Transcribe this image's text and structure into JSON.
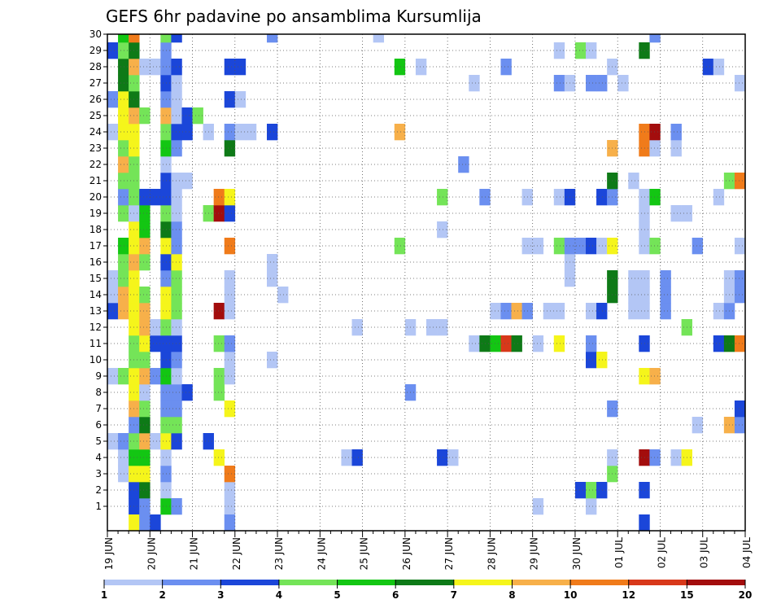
{
  "chart_data": {
    "type": "heatmap",
    "title": "GEFS 6hr padavine po ansamblima Kursumlija",
    "xlabel": "",
    "ylabel": "",
    "x_ticks": [
      "19 JUN",
      "20 JUN",
      "21 JUN",
      "22 JUN",
      "23 JUN",
      "24 JUN",
      "25 JUN",
      "26 JUN",
      "27 JUN",
      "28 JUN",
      "29 JUN",
      "30 JUN",
      "01 JUL",
      "02 JUL",
      "03 JUL",
      "04 JUL"
    ],
    "y_ticks": [
      "1",
      "2",
      "3",
      "4",
      "5",
      "6",
      "7",
      "8",
      "9",
      "10",
      "11",
      "12",
      "13",
      "14",
      "15",
      "16",
      "17",
      "18",
      "19",
      "20",
      "21",
      "22",
      "23",
      "24",
      "25",
      "26",
      "27",
      "28",
      "29",
      "30"
    ],
    "steps_per_day": 4,
    "n_steps": 60,
    "members": 30,
    "grid": "dotted",
    "colorbar": {
      "levels": [
        "1",
        "2",
        "3",
        "4",
        "5",
        "6",
        "7",
        "8",
        "10",
        "12",
        "15",
        "20"
      ],
      "colors": [
        "#b3c6f5",
        "#6b8ff0",
        "#1b46d9",
        "#74e458",
        "#13c613",
        "#0e7a17",
        "#f5f51b",
        "#f7b04a",
        "#f07b1a",
        "#d8381a",
        "#a30d0d"
      ]
    },
    "cells": [
      [
        1,
        2,
        "#1b46d9"
      ],
      [
        1,
        3,
        "#6b8ff0"
      ],
      [
        1,
        5,
        "#13c613"
      ],
      [
        1,
        6,
        "#6b8ff0"
      ],
      [
        1,
        11,
        "#b3c6f5"
      ],
      [
        1,
        40,
        "#b3c6f5"
      ],
      [
        1,
        45,
        "#b3c6f5"
      ],
      [
        2,
        2,
        "#1b46d9"
      ],
      [
        2,
        3,
        "#0e7a17"
      ],
      [
        2,
        5,
        "#b3c6f5"
      ],
      [
        2,
        11,
        "#b3c6f5"
      ],
      [
        2,
        44,
        "#1b46d9"
      ],
      [
        2,
        45,
        "#74e458"
      ],
      [
        2,
        46,
        "#1b46d9"
      ],
      [
        2,
        50,
        "#1b46d9"
      ],
      [
        3,
        1,
        "#b3c6f5"
      ],
      [
        3,
        2,
        "#f5f51b"
      ],
      [
        3,
        3,
        "#f5f51b"
      ],
      [
        3,
        5,
        "#6b8ff0"
      ],
      [
        3,
        11,
        "#f07b1a"
      ],
      [
        3,
        47,
        "#74e458"
      ],
      [
        4,
        1,
        "#b3c6f5"
      ],
      [
        4,
        2,
        "#13c613"
      ],
      [
        4,
        3,
        "#13c613"
      ],
      [
        4,
        5,
        "#b3c6f5"
      ],
      [
        4,
        10,
        "#f5f51b"
      ],
      [
        4,
        22,
        "#b3c6f5"
      ],
      [
        4,
        23,
        "#1b46d9"
      ],
      [
        4,
        31,
        "#1b46d9"
      ],
      [
        4,
        32,
        "#b3c6f5"
      ],
      [
        4,
        47,
        "#b3c6f5"
      ],
      [
        4,
        50,
        "#a30d0d"
      ],
      [
        4,
        51,
        "#6b8ff0"
      ],
      [
        4,
        53,
        "#b3c6f5"
      ],
      [
        4,
        54,
        "#f5f51b"
      ],
      [
        5,
        0,
        "#b3c6f5"
      ],
      [
        5,
        1,
        "#6b8ff0"
      ],
      [
        5,
        2,
        "#74e458"
      ],
      [
        5,
        3,
        "#f7b04a"
      ],
      [
        5,
        4,
        "#b3c6f5"
      ],
      [
        5,
        5,
        "#f5f51b"
      ],
      [
        5,
        6,
        "#1b46d9"
      ],
      [
        5,
        9,
        "#1b46d9"
      ],
      [
        6,
        2,
        "#6b8ff0"
      ],
      [
        6,
        3,
        "#0e7a17"
      ],
      [
        6,
        5,
        "#74e458"
      ],
      [
        6,
        6,
        "#74e458"
      ],
      [
        6,
        55,
        "#b3c6f5"
      ],
      [
        6,
        58,
        "#f7b04a"
      ],
      [
        6,
        59,
        "#6b8ff0"
      ],
      [
        7,
        2,
        "#f7b04a"
      ],
      [
        7,
        3,
        "#74e458"
      ],
      [
        7,
        5,
        "#6b8ff0"
      ],
      [
        7,
        6,
        "#6b8ff0"
      ],
      [
        7,
        11,
        "#f5f51b"
      ],
      [
        7,
        47,
        "#6b8ff0"
      ],
      [
        7,
        59,
        "#1b46d9"
      ],
      [
        8,
        2,
        "#f5f51b"
      ],
      [
        8,
        3,
        "#b3c6f5"
      ],
      [
        8,
        5,
        "#6b8ff0"
      ],
      [
        8,
        6,
        "#6b8ff0"
      ],
      [
        8,
        7,
        "#1b46d9"
      ],
      [
        8,
        10,
        "#74e458"
      ],
      [
        8,
        28,
        "#6b8ff0"
      ],
      [
        9,
        0,
        "#b3c6f5"
      ],
      [
        9,
        1,
        "#74e458"
      ],
      [
        9,
        2,
        "#f5f51b"
      ],
      [
        9,
        3,
        "#f7b04a"
      ],
      [
        9,
        4,
        "#6b8ff0"
      ],
      [
        9,
        5,
        "#13c613"
      ],
      [
        9,
        6,
        "#b3c6f5"
      ],
      [
        9,
        10,
        "#74e458"
      ],
      [
        9,
        11,
        "#b3c6f5"
      ],
      [
        9,
        50,
        "#f5f51b"
      ],
      [
        9,
        51,
        "#f7b04a"
      ],
      [
        10,
        2,
        "#74e458"
      ],
      [
        10,
        3,
        "#74e458"
      ],
      [
        10,
        5,
        "#1b46d9"
      ],
      [
        10,
        6,
        "#6b8ff0"
      ],
      [
        10,
        11,
        "#b3c6f5"
      ],
      [
        10,
        15,
        "#b3c6f5"
      ],
      [
        10,
        45,
        "#1b46d9"
      ],
      [
        10,
        46,
        "#f5f51b"
      ],
      [
        11,
        2,
        "#74e458"
      ],
      [
        11,
        3,
        "#f5f51b"
      ],
      [
        11,
        4,
        "#1b46d9"
      ],
      [
        11,
        5,
        "#1b46d9"
      ],
      [
        11,
        6,
        "#1b46d9"
      ],
      [
        11,
        10,
        "#74e458"
      ],
      [
        11,
        11,
        "#6b8ff0"
      ],
      [
        11,
        34,
        "#b3c6f5"
      ],
      [
        11,
        35,
        "#0e7a17"
      ],
      [
        11,
        36,
        "#13c613"
      ],
      [
        11,
        37,
        "#d8381a"
      ],
      [
        11,
        38,
        "#0e7a17"
      ],
      [
        11,
        40,
        "#b3c6f5"
      ],
      [
        11,
        42,
        "#f5f51b"
      ],
      [
        11,
        45,
        "#6b8ff0"
      ],
      [
        11,
        50,
        "#1b46d9"
      ],
      [
        11,
        57,
        "#1b46d9"
      ],
      [
        11,
        58,
        "#0e7a17"
      ],
      [
        11,
        59,
        "#f07b1a"
      ],
      [
        12,
        2,
        "#f5f51b"
      ],
      [
        12,
        3,
        "#f7b04a"
      ],
      [
        12,
        4,
        "#b3c6f5"
      ],
      [
        12,
        5,
        "#74e458"
      ],
      [
        12,
        6,
        "#b3c6f5"
      ],
      [
        12,
        23,
        "#b3c6f5"
      ],
      [
        12,
        28,
        "#b3c6f5"
      ],
      [
        12,
        30,
        "#b3c6f5"
      ],
      [
        12,
        31,
        "#b3c6f5"
      ],
      [
        12,
        54,
        "#74e458"
      ],
      [
        13,
        0,
        "#1b46d9"
      ],
      [
        13,
        1,
        "#f7b04a"
      ],
      [
        13,
        2,
        "#f5f51b"
      ],
      [
        13,
        3,
        "#f7b04a"
      ],
      [
        13,
        5,
        "#f5f51b"
      ],
      [
        13,
        6,
        "#74e458"
      ],
      [
        13,
        10,
        "#a30d0d"
      ],
      [
        13,
        11,
        "#b3c6f5"
      ],
      [
        13,
        36,
        "#b3c6f5"
      ],
      [
        13,
        37,
        "#6b8ff0"
      ],
      [
        13,
        38,
        "#f7b04a"
      ],
      [
        13,
        39,
        "#6b8ff0"
      ],
      [
        13,
        41,
        "#b3c6f5"
      ],
      [
        13,
        42,
        "#b3c6f5"
      ],
      [
        13,
        45,
        "#b3c6f5"
      ],
      [
        13,
        46,
        "#1b46d9"
      ],
      [
        13,
        49,
        "#b3c6f5"
      ],
      [
        13,
        50,
        "#b3c6f5"
      ],
      [
        13,
        52,
        "#6b8ff0"
      ],
      [
        13,
        57,
        "#b3c6f5"
      ],
      [
        13,
        58,
        "#6b8ff0"
      ],
      [
        14,
        0,
        "#b3c6f5"
      ],
      [
        14,
        1,
        "#f7b04a"
      ],
      [
        14,
        2,
        "#f5f51b"
      ],
      [
        14,
        3,
        "#74e458"
      ],
      [
        14,
        5,
        "#f5f51b"
      ],
      [
        14,
        6,
        "#74e458"
      ],
      [
        14,
        11,
        "#b3c6f5"
      ],
      [
        14,
        16,
        "#b3c6f5"
      ],
      [
        14,
        47,
        "#0e7a17"
      ],
      [
        14,
        49,
        "#b3c6f5"
      ],
      [
        14,
        50,
        "#b3c6f5"
      ],
      [
        14,
        52,
        "#6b8ff0"
      ],
      [
        14,
        58,
        "#b3c6f5"
      ],
      [
        14,
        59,
        "#6b8ff0"
      ],
      [
        15,
        0,
        "#b3c6f5"
      ],
      [
        15,
        1,
        "#74e458"
      ],
      [
        15,
        2,
        "#f5f51b"
      ],
      [
        15,
        5,
        "#6b8ff0"
      ],
      [
        15,
        6,
        "#74e458"
      ],
      [
        15,
        11,
        "#b3c6f5"
      ],
      [
        15,
        15,
        "#b3c6f5"
      ],
      [
        15,
        43,
        "#b3c6f5"
      ],
      [
        15,
        47,
        "#0e7a17"
      ],
      [
        15,
        49,
        "#b3c6f5"
      ],
      [
        15,
        50,
        "#b3c6f5"
      ],
      [
        15,
        52,
        "#6b8ff0"
      ],
      [
        15,
        58,
        "#b3c6f5"
      ],
      [
        15,
        59,
        "#6b8ff0"
      ],
      [
        16,
        1,
        "#74e458"
      ],
      [
        16,
        2,
        "#f7b04a"
      ],
      [
        16,
        3,
        "#74e458"
      ],
      [
        16,
        5,
        "#1b46d9"
      ],
      [
        16,
        6,
        "#f5f51b"
      ],
      [
        16,
        15,
        "#b3c6f5"
      ],
      [
        16,
        43,
        "#b3c6f5"
      ],
      [
        17,
        1,
        "#13c613"
      ],
      [
        17,
        2,
        "#f5f51b"
      ],
      [
        17,
        3,
        "#f7b04a"
      ],
      [
        17,
        5,
        "#f5f51b"
      ],
      [
        17,
        6,
        "#6b8ff0"
      ],
      [
        17,
        11,
        "#f07b1a"
      ],
      [
        17,
        27,
        "#74e458"
      ],
      [
        17,
        39,
        "#b3c6f5"
      ],
      [
        17,
        40,
        "#b3c6f5"
      ],
      [
        17,
        42,
        "#74e458"
      ],
      [
        17,
        43,
        "#6b8ff0"
      ],
      [
        17,
        44,
        "#6b8ff0"
      ],
      [
        17,
        45,
        "#1b46d9"
      ],
      [
        17,
        46,
        "#b3c6f5"
      ],
      [
        17,
        47,
        "#f5f51b"
      ],
      [
        17,
        50,
        "#b3c6f5"
      ],
      [
        17,
        51,
        "#74e458"
      ],
      [
        17,
        55,
        "#6b8ff0"
      ],
      [
        17,
        59,
        "#b3c6f5"
      ],
      [
        18,
        2,
        "#f5f51b"
      ],
      [
        18,
        3,
        "#13c613"
      ],
      [
        18,
        5,
        "#0e7a17"
      ],
      [
        18,
        6,
        "#6b8ff0"
      ],
      [
        18,
        31,
        "#b3c6f5"
      ],
      [
        18,
        50,
        "#b3c6f5"
      ],
      [
        19,
        1,
        "#74e458"
      ],
      [
        19,
        2,
        "#b3c6f5"
      ],
      [
        19,
        3,
        "#13c613"
      ],
      [
        19,
        5,
        "#74e458"
      ],
      [
        19,
        6,
        "#b3c6f5"
      ],
      [
        19,
        9,
        "#74e458"
      ],
      [
        19,
        10,
        "#a30d0d"
      ],
      [
        19,
        11,
        "#1b46d9"
      ],
      [
        19,
        50,
        "#b3c6f5"
      ],
      [
        19,
        53,
        "#b3c6f5"
      ],
      [
        19,
        54,
        "#b3c6f5"
      ],
      [
        20,
        1,
        "#6b8ff0"
      ],
      [
        20,
        2,
        "#74e458"
      ],
      [
        20,
        3,
        "#1b46d9"
      ],
      [
        20,
        4,
        "#1b46d9"
      ],
      [
        20,
        5,
        "#1b46d9"
      ],
      [
        20,
        6,
        "#b3c6f5"
      ],
      [
        20,
        10,
        "#f07b1a"
      ],
      [
        20,
        11,
        "#f5f51b"
      ],
      [
        20,
        31,
        "#74e458"
      ],
      [
        20,
        35,
        "#6b8ff0"
      ],
      [
        20,
        39,
        "#b3c6f5"
      ],
      [
        20,
        42,
        "#b3c6f5"
      ],
      [
        20,
        43,
        "#1b46d9"
      ],
      [
        20,
        46,
        "#1b46d9"
      ],
      [
        20,
        47,
        "#6b8ff0"
      ],
      [
        20,
        50,
        "#b3c6f5"
      ],
      [
        20,
        51,
        "#13c613"
      ],
      [
        20,
        57,
        "#b3c6f5"
      ],
      [
        21,
        1,
        "#74e458"
      ],
      [
        21,
        2,
        "#74e458"
      ],
      [
        21,
        5,
        "#1b46d9"
      ],
      [
        21,
        6,
        "#b3c6f5"
      ],
      [
        21,
        7,
        "#b3c6f5"
      ],
      [
        21,
        47,
        "#0e7a17"
      ],
      [
        21,
        49,
        "#b3c6f5"
      ],
      [
        21,
        58,
        "#74e458"
      ],
      [
        21,
        59,
        "#f07b1a"
      ],
      [
        22,
        1,
        "#f7b04a"
      ],
      [
        22,
        2,
        "#74e458"
      ],
      [
        22,
        5,
        "#b3c6f5"
      ],
      [
        22,
        33,
        "#6b8ff0"
      ],
      [
        23,
        1,
        "#74e458"
      ],
      [
        23,
        2,
        "#f5f51b"
      ],
      [
        23,
        5,
        "#13c613"
      ],
      [
        23,
        6,
        "#6b8ff0"
      ],
      [
        23,
        11,
        "#0e7a17"
      ],
      [
        23,
        47,
        "#f7b04a"
      ],
      [
        23,
        50,
        "#f07b1a"
      ],
      [
        23,
        51,
        "#b3c6f5"
      ],
      [
        23,
        53,
        "#b3c6f5"
      ],
      [
        24,
        0,
        "#b3c6f5"
      ],
      [
        24,
        1,
        "#f5f51b"
      ],
      [
        24,
        2,
        "#f5f51b"
      ],
      [
        24,
        5,
        "#74e458"
      ],
      [
        24,
        6,
        "#1b46d9"
      ],
      [
        24,
        7,
        "#1b46d9"
      ],
      [
        24,
        9,
        "#b3c6f5"
      ],
      [
        24,
        11,
        "#6b8ff0"
      ],
      [
        24,
        12,
        "#b3c6f5"
      ],
      [
        24,
        13,
        "#b3c6f5"
      ],
      [
        24,
        15,
        "#1b46d9"
      ],
      [
        24,
        27,
        "#f7b04a"
      ],
      [
        24,
        50,
        "#f07b1a"
      ],
      [
        24,
        51,
        "#a30d0d"
      ],
      [
        24,
        53,
        "#6b8ff0"
      ],
      [
        25,
        1,
        "#f5f51b"
      ],
      [
        25,
        2,
        "#f7b04a"
      ],
      [
        25,
        3,
        "#74e458"
      ],
      [
        25,
        5,
        "#f7b04a"
      ],
      [
        25,
        6,
        "#b3c6f5"
      ],
      [
        25,
        7,
        "#1b46d9"
      ],
      [
        25,
        8,
        "#74e458"
      ],
      [
        26,
        0,
        "#6b8ff0"
      ],
      [
        26,
        1,
        "#f5f51b"
      ],
      [
        26,
        2,
        "#0e7a17"
      ],
      [
        26,
        5,
        "#6b8ff0"
      ],
      [
        26,
        6,
        "#b3c6f5"
      ],
      [
        26,
        11,
        "#1b46d9"
      ],
      [
        26,
        12,
        "#b3c6f5"
      ],
      [
        27,
        1,
        "#0e7a17"
      ],
      [
        27,
        2,
        "#74e458"
      ],
      [
        27,
        5,
        "#1b46d9"
      ],
      [
        27,
        6,
        "#b3c6f5"
      ],
      [
        27,
        34,
        "#b3c6f5"
      ],
      [
        27,
        42,
        "#6b8ff0"
      ],
      [
        27,
        43,
        "#b3c6f5"
      ],
      [
        27,
        45,
        "#6b8ff0"
      ],
      [
        27,
        46,
        "#6b8ff0"
      ],
      [
        27,
        48,
        "#b3c6f5"
      ],
      [
        27,
        59,
        "#b3c6f5"
      ],
      [
        28,
        1,
        "#0e7a17"
      ],
      [
        28,
        2,
        "#f7b04a"
      ],
      [
        28,
        3,
        "#b3c6f5"
      ],
      [
        28,
        4,
        "#b3c6f5"
      ],
      [
        28,
        5,
        "#6b8ff0"
      ],
      [
        28,
        6,
        "#1b46d9"
      ],
      [
        28,
        11,
        "#1b46d9"
      ],
      [
        28,
        12,
        "#1b46d9"
      ],
      [
        28,
        27,
        "#13c613"
      ],
      [
        28,
        29,
        "#b3c6f5"
      ],
      [
        28,
        37,
        "#6b8ff0"
      ],
      [
        28,
        47,
        "#b3c6f5"
      ],
      [
        28,
        56,
        "#1b46d9"
      ],
      [
        28,
        57,
        "#b3c6f5"
      ],
      [
        29,
        0,
        "#1b46d9"
      ],
      [
        29,
        1,
        "#74e458"
      ],
      [
        29,
        2,
        "#0e7a17"
      ],
      [
        29,
        5,
        "#6b8ff0"
      ],
      [
        29,
        42,
        "#b3c6f5"
      ],
      [
        29,
        44,
        "#74e458"
      ],
      [
        29,
        45,
        "#b3c6f5"
      ],
      [
        29,
        50,
        "#0e7a17"
      ],
      [
        30,
        1,
        "#13c613"
      ],
      [
        30,
        2,
        "#f07b1a"
      ],
      [
        30,
        5,
        "#74e458"
      ],
      [
        30,
        6,
        "#1b46d9"
      ],
      [
        30,
        15,
        "#6b8ff0"
      ],
      [
        30,
        25,
        "#b3c6f5"
      ],
      [
        30,
        51,
        "#6b8ff0"
      ],
      [
        0,
        2,
        "#f5f51b"
      ],
      [
        0,
        3,
        "#6b8ff0"
      ],
      [
        0,
        4,
        "#1b46d9"
      ],
      [
        0,
        11,
        "#6b8ff0"
      ],
      [
        0,
        50,
        "#1b46d9"
      ]
    ]
  }
}
